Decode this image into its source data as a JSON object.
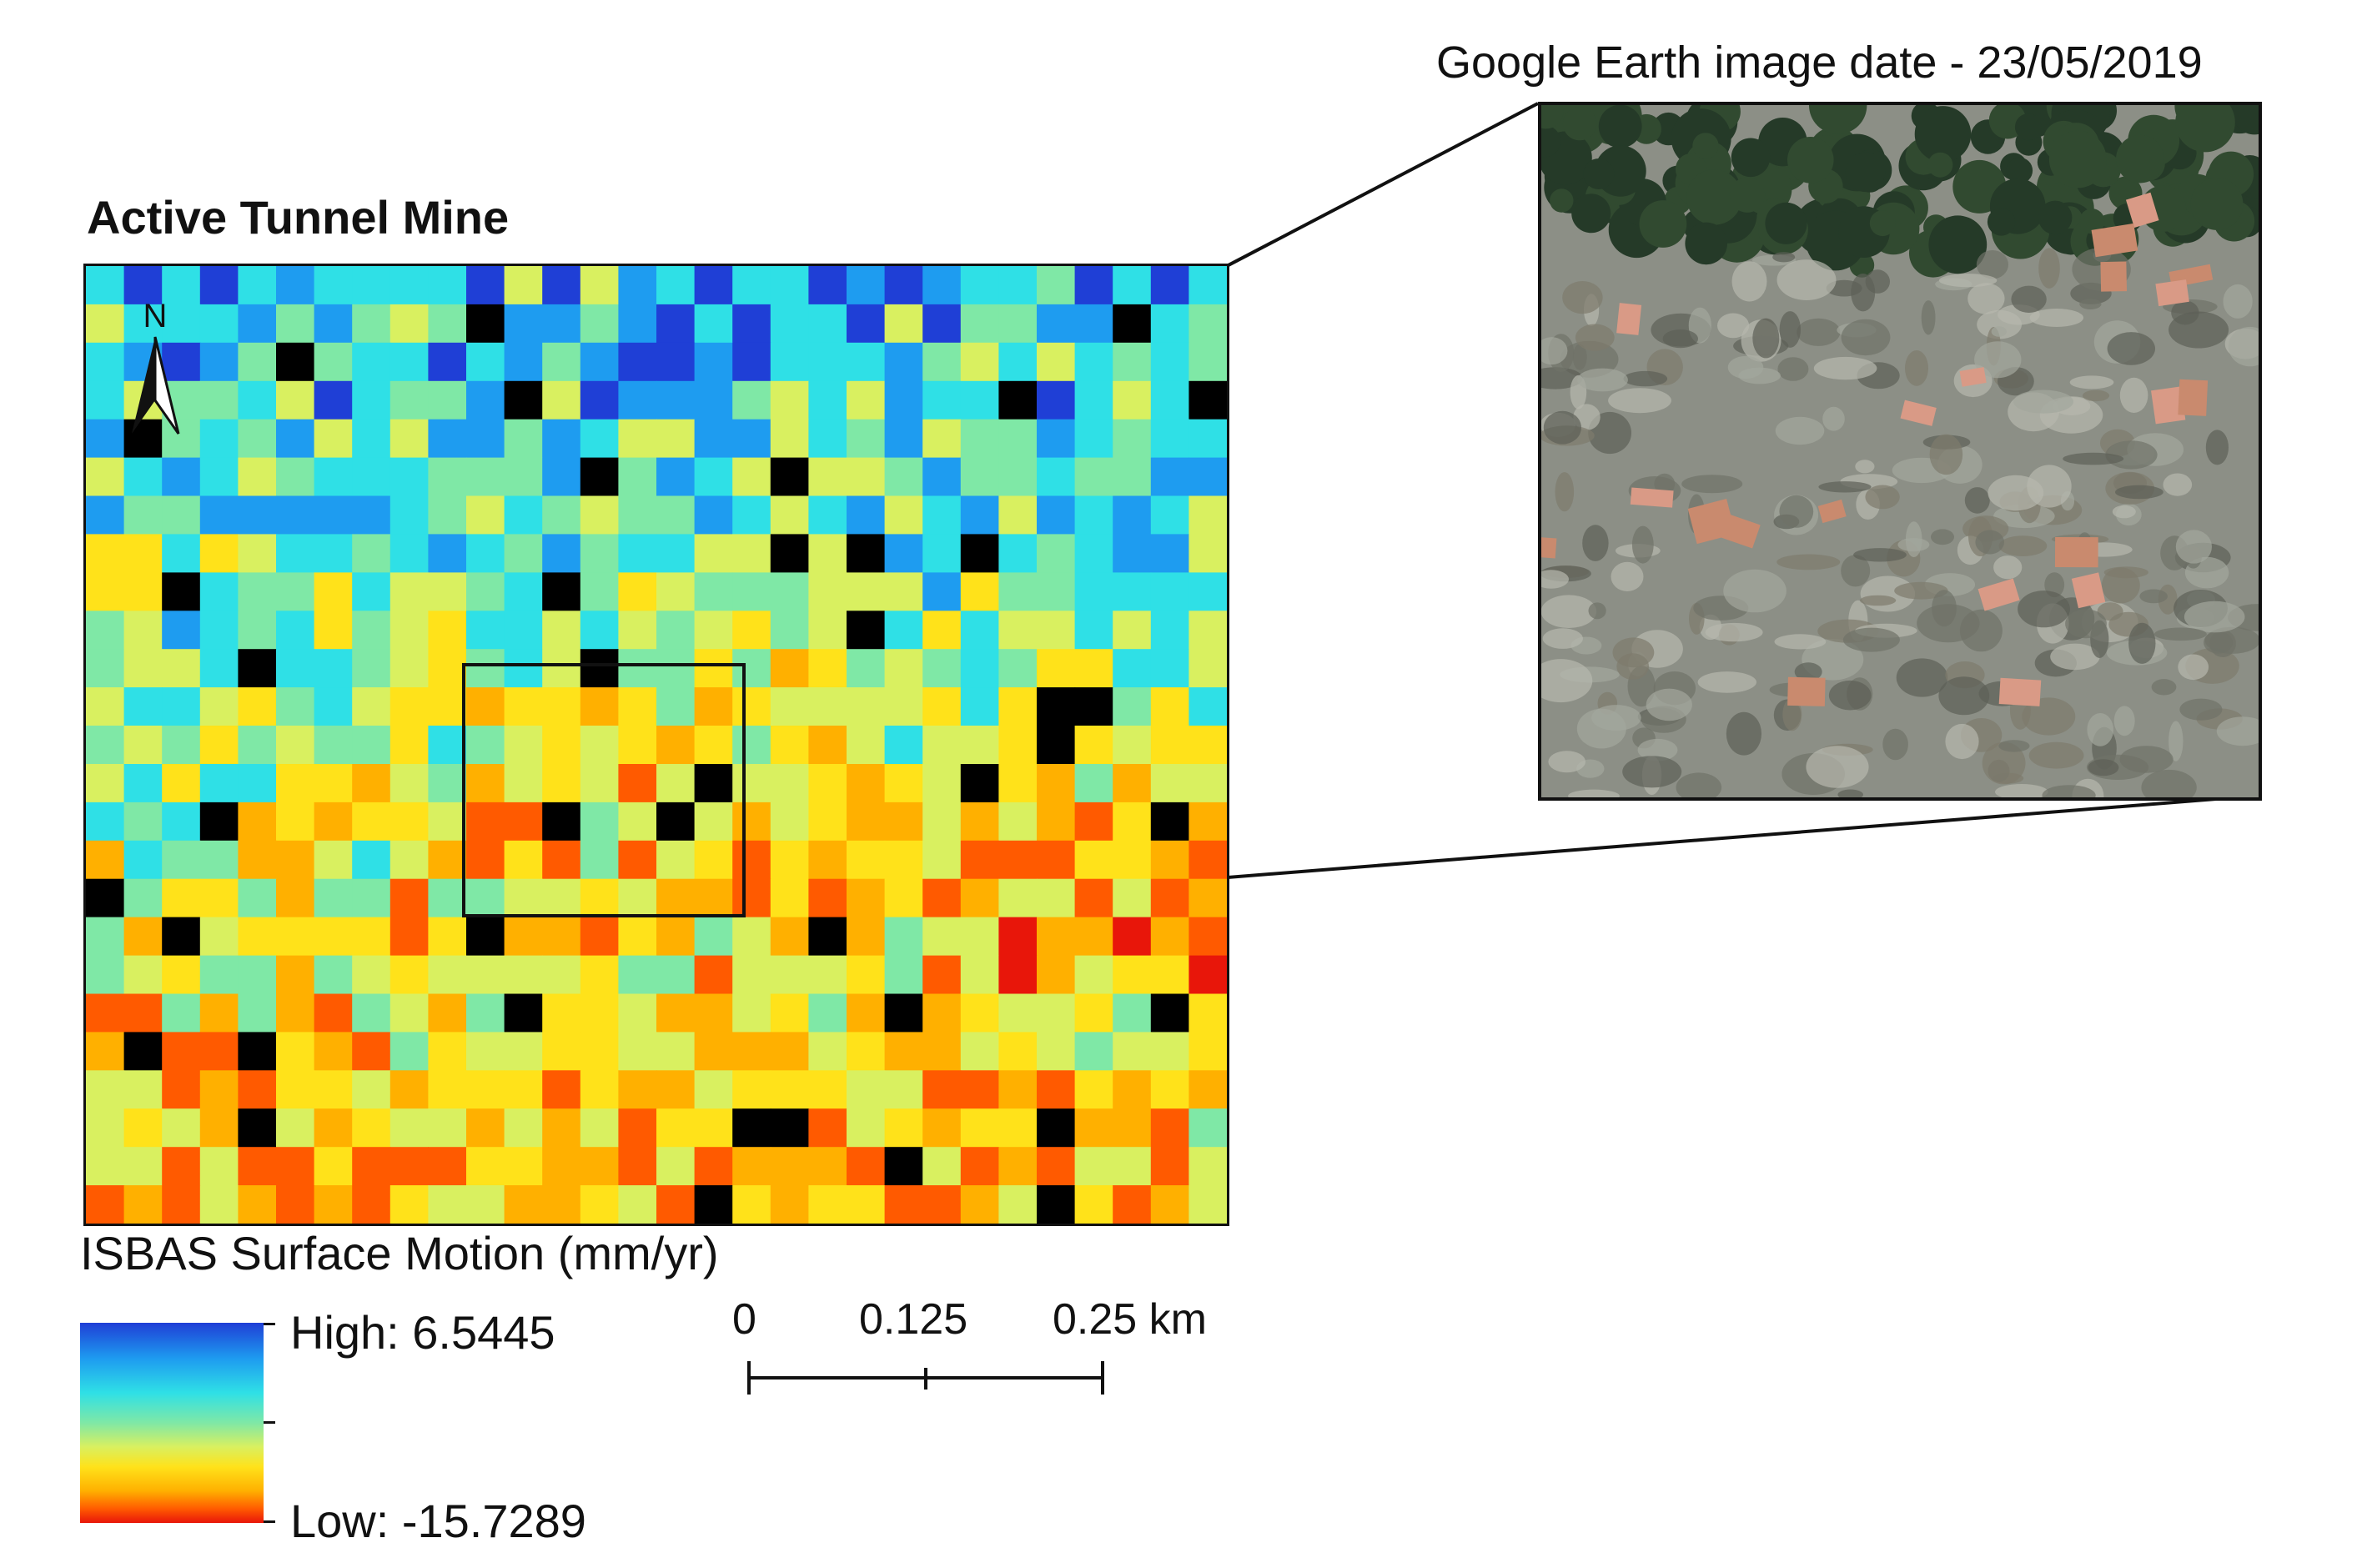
{
  "map": {
    "title": "Active Tunnel Mine",
    "north_label": "N",
    "legend": {
      "title": "ISBAS Surface Motion (mm/yr)",
      "high_label": "High: 6.5445",
      "low_label": "Low: -15.7289",
      "ramp_colors": [
        "#1f3fd6",
        "#1e9cf0",
        "#2fe0e6",
        "#7fe8a6",
        "#d9f060",
        "#ffe21a",
        "#ffb000",
        "#ff5a00",
        "#e8160a"
      ],
      "nodata_color": "#000000"
    },
    "scale_bar": {
      "labels": [
        "0",
        "0.125",
        "0.25 km"
      ]
    },
    "inset": {
      "caption": "Google Earth image date - 23/05/2019"
    }
  }
}
